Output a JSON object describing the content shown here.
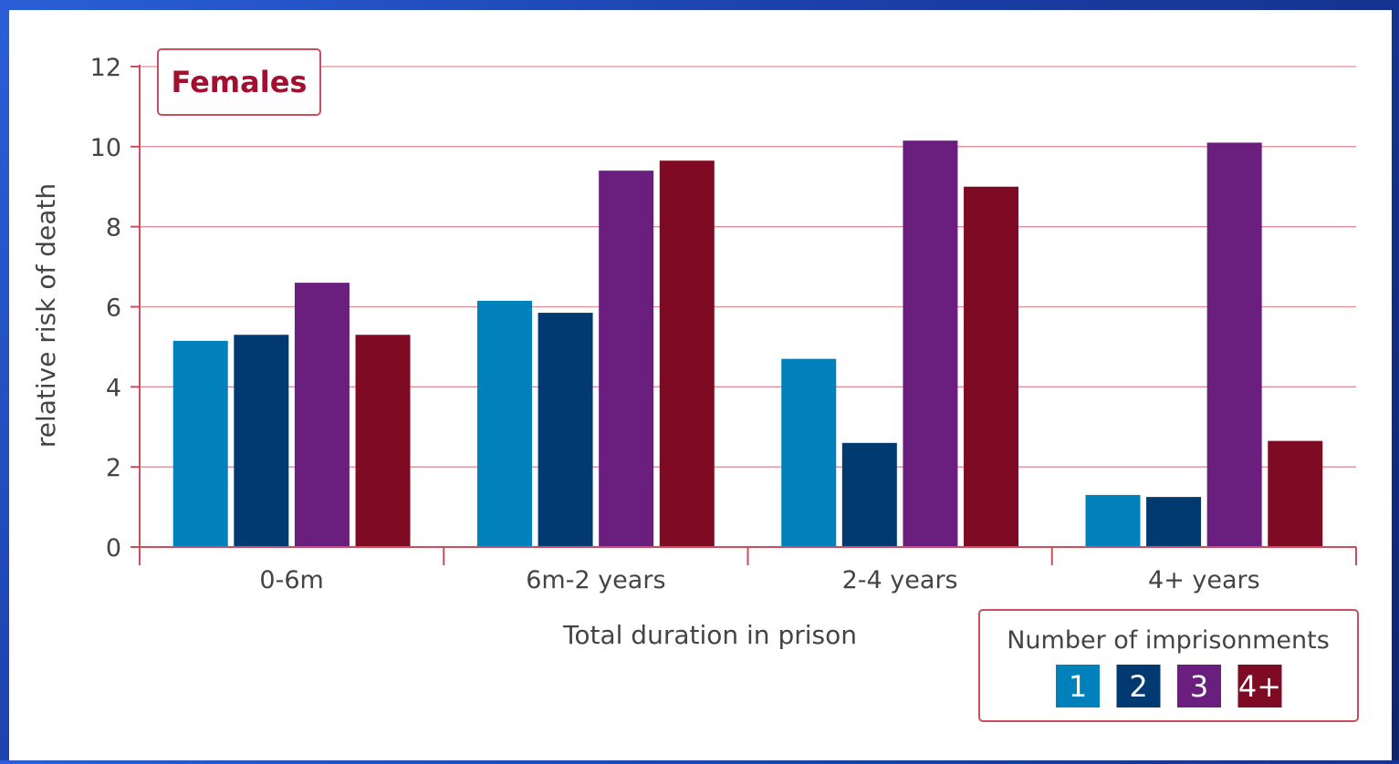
{
  "chart_data": {
    "type": "bar",
    "title": "Females",
    "xlabel": "Total duration in prison",
    "ylabel": "relative risk of death",
    "ylim": [
      0,
      12
    ],
    "yticks": [
      0,
      2,
      4,
      6,
      8,
      10,
      12
    ],
    "grid": true,
    "legend_placement": "bottom-right",
    "legend_title": "Number of imprisonments",
    "categories": [
      "0-6m",
      "6m-2 years",
      "2-4 years",
      "4+ years"
    ],
    "series": [
      {
        "name": "1",
        "color": "#0081bb",
        "values": [
          5.15,
          6.15,
          4.7,
          1.3
        ]
      },
      {
        "name": "2",
        "color": "#003a70",
        "values": [
          5.3,
          5.85,
          2.6,
          1.25
        ]
      },
      {
        "name": "3",
        "color": "#6a1f7e",
        "values": [
          6.6,
          9.4,
          10.15,
          10.1
        ]
      },
      {
        "name": "4+",
        "color": "#7e0a24",
        "values": [
          5.3,
          9.65,
          9.0,
          2.65
        ]
      }
    ],
    "colors": {
      "axis": "#cc4e5c",
      "grid": "#e08d98",
      "title_text": "#a3102f",
      "text": "#444444"
    }
  }
}
